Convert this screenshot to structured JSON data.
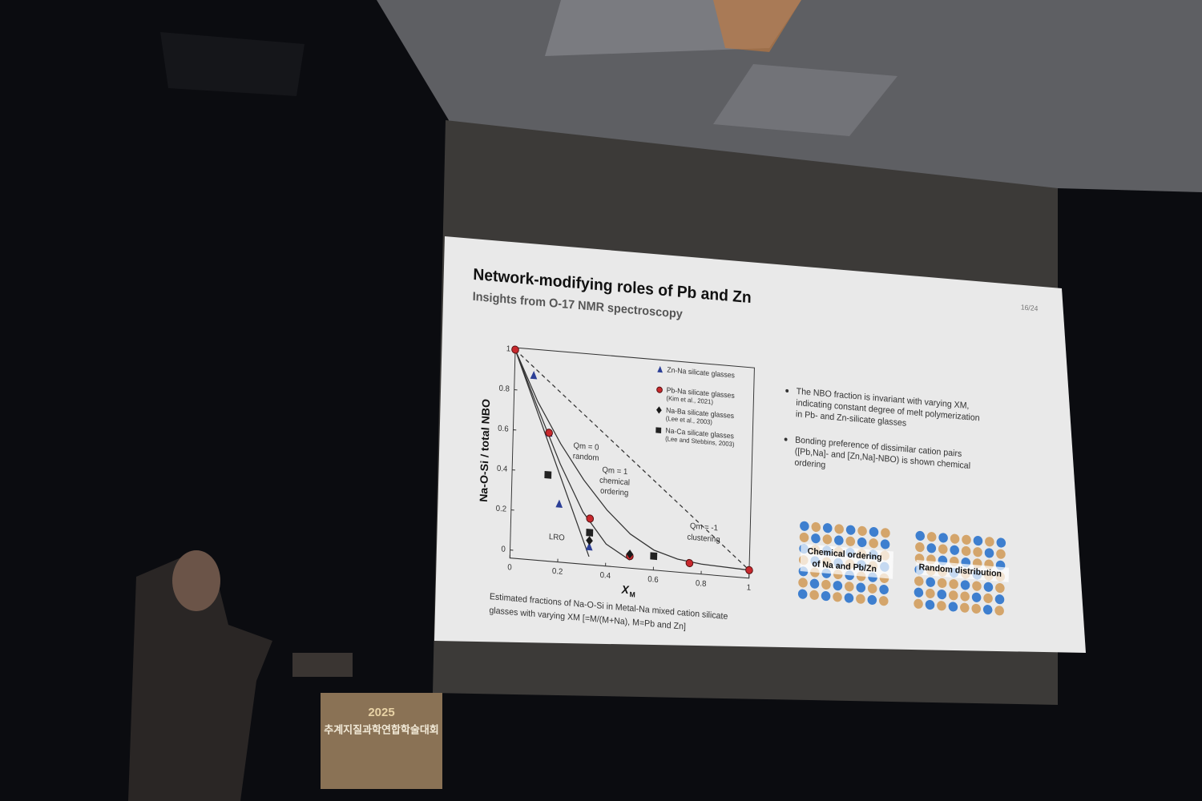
{
  "slide": {
    "title": "Network-modifying roles of Pb and Zn",
    "subtitle": "Insights from O-17 NMR spectroscopy",
    "page": "16/24",
    "bullets": [
      [
        "The NBO fraction is invariant with varying XM,",
        "indicating constant degree of melt polymerization",
        "in Pb- and Zn-silicate glasses"
      ],
      [
        "Bonding preference of dissimilar cation pairs",
        "([Pb,Na]- and [Zn,Na]-NBO) is shown chemical",
        "ordering"
      ]
    ],
    "panels": [
      [
        "Chemical ordering",
        "of Na and Pb/Zn"
      ],
      [
        "Random distribution"
      ]
    ],
    "caption": [
      "Estimated fractions of Na-O-Si in Metal-Na mixed cation silicate",
      "glasses with varying XM [=M/(M+Na), M=Pb and Zn]"
    ]
  },
  "podium": {
    "year": "2025",
    "name": "추계지질과학연합학술대회"
  },
  "chart_data": {
    "type": "scatter",
    "ylabel": "Na-O-Si / total NBO",
    "xlabel": "X",
    "xlabel_sub": "M",
    "xlim": [
      0,
      1
    ],
    "ylim": [
      -0.04,
      1.01
    ],
    "xticks": [
      0,
      0.2,
      0.4,
      0.6,
      0.8,
      1
    ],
    "yticks": [
      0,
      0.2,
      0.4,
      0.6,
      0.8,
      1
    ],
    "series": [
      {
        "name": "Zn-Na silicate glasses",
        "marker": "triangle",
        "color": "#2c3f96",
        "x": [
          0.08,
          0.15,
          0.2,
          0.33,
          0.5
        ],
        "values": [
          0.88,
          0.6,
          0.25,
          0.05,
          0.03
        ]
      },
      {
        "name": "Pb-Na silicate glasses",
        "note": "(Kim et al., 2021)",
        "marker": "circle",
        "color": "#c8282d",
        "x": [
          0,
          0.15,
          0.33,
          0.5,
          0.75,
          1
        ],
        "values": [
          1,
          0.6,
          0.19,
          0.02,
          0.01,
          0
        ]
      },
      {
        "name": "Na-Ba silicate glasses",
        "note": "(Lee et al., 2003)",
        "marker": "diamond",
        "color": "#1a1a1a",
        "x": [
          0.33,
          0.5
        ],
        "values": [
          0.08,
          0.03
        ]
      },
      {
        "name": "Na-Ca silicate glasses",
        "note": "(Lee and Stebbins, 2003)",
        "marker": "square",
        "color": "#222222",
        "x": [
          0.15,
          0.33,
          0.6
        ],
        "values": [
          0.39,
          0.12,
          0.03
        ]
      }
    ],
    "curves": [
      {
        "dash": true,
        "x": [
          0,
          1
        ],
        "values": [
          1,
          0
        ]
      },
      {
        "dash": false,
        "x": [
          0,
          0.1,
          0.2,
          0.3,
          0.4,
          0.5,
          0.6,
          0.7,
          0.8,
          1
        ],
        "values": [
          1,
          0.75,
          0.55,
          0.38,
          0.24,
          0.13,
          0.06,
          0.025,
          0.01,
          0
        ]
      },
      {
        "dash": false,
        "x": [
          0,
          0.1,
          0.2,
          0.3,
          0.4,
          0.5
        ],
        "values": [
          1,
          0.72,
          0.45,
          0.22,
          0.07,
          0
        ]
      },
      {
        "dash": false,
        "x": [
          0,
          0.33
        ],
        "values": [
          1,
          0
        ]
      }
    ],
    "annotations": [
      "Qm = 0",
      "random",
      "Qm = 1",
      "chemical",
      "ordering",
      "Qm = -1",
      "clustering",
      "LRO"
    ]
  }
}
